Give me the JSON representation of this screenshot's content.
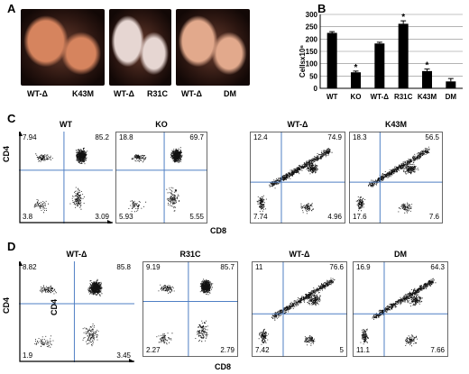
{
  "panels": {
    "A": "A",
    "B": "B",
    "C": "C",
    "D": "D"
  },
  "panel_a": {
    "photos": [
      {
        "labels": [
          "WT-Δ",
          "K43M"
        ],
        "tint": "#d6845e"
      },
      {
        "labels": [
          "WT-Δ",
          "R31C"
        ],
        "tint": "#e6d6d2"
      },
      {
        "labels": [
          "WT-Δ",
          "DM"
        ],
        "tint": "#e2a98c"
      }
    ]
  },
  "chart_data": {
    "type": "bar",
    "categories": [
      "WT",
      "KO",
      "WT-Δ",
      "R31C",
      "K43M",
      "DM"
    ],
    "values": [
      225,
      65,
      182,
      262,
      70,
      28
    ],
    "errors": [
      5,
      5,
      5,
      12,
      8,
      12
    ],
    "significant": [
      false,
      true,
      false,
      true,
      true,
      false
    ],
    "significance_mark": "*",
    "title": "",
    "xlabel": "",
    "ylabel": "Cellsx10⁶",
    "ylim": [
      0,
      300
    ],
    "yticks": [
      0,
      50,
      100,
      150,
      200,
      250,
      300
    ],
    "grid": true,
    "bar_color": "#000000"
  },
  "panel_c": {
    "xlabel": "CD8",
    "ylabel": "CD4",
    "plots": [
      {
        "title": "WT",
        "ul": "7.94",
        "ur": "85.2",
        "ll": "3.8",
        "lr": "3.09",
        "qx": 0.48,
        "qy": 0.42,
        "pop": "tight"
      },
      {
        "title": "KO",
        "ul": "18.8",
        "ur": "69.7",
        "ll": "5.93",
        "lr": "5.55",
        "qx": 0.53,
        "qy": 0.42,
        "pop": "tight"
      },
      {
        "title": "WT-Δ",
        "ul": "12.4",
        "ur": "74.9",
        "ll": "7.74",
        "lr": "4.96",
        "qx": 0.33,
        "qy": 0.55,
        "pop": "diag"
      },
      {
        "title": "K43M",
        "ul": "18.3",
        "ur": "56.5",
        "ll": "17.6",
        "lr": "7.6",
        "qx": 0.33,
        "qy": 0.55,
        "pop": "diag"
      }
    ]
  },
  "panel_d": {
    "xlabel": "CD8",
    "ylabel": "CD4",
    "inner_ylabel": "CD4",
    "plots": [
      {
        "title": "WT-Δ",
        "ul": "8.82",
        "ur": "85.8",
        "ll": "1.9",
        "lr": "3.45",
        "qx": 0.48,
        "qy": 0.42,
        "pop": "tight"
      },
      {
        "title": "R31C",
        "ul": "9.19",
        "ur": "85.7",
        "ll": "2.27",
        "lr": "2.79",
        "qx": 0.48,
        "qy": 0.42,
        "pop": "tight"
      },
      {
        "title": "WT-Δ",
        "ul": "11",
        "ur": "76.6",
        "ll": "7.42",
        "lr": "5",
        "qx": 0.33,
        "qy": 0.55,
        "pop": "diag"
      },
      {
        "title": "DM",
        "ul": "16.9",
        "ur": "64.3",
        "ll": "11.1",
        "lr": "7.66",
        "qx": 0.33,
        "qy": 0.55,
        "pop": "diag"
      }
    ]
  }
}
